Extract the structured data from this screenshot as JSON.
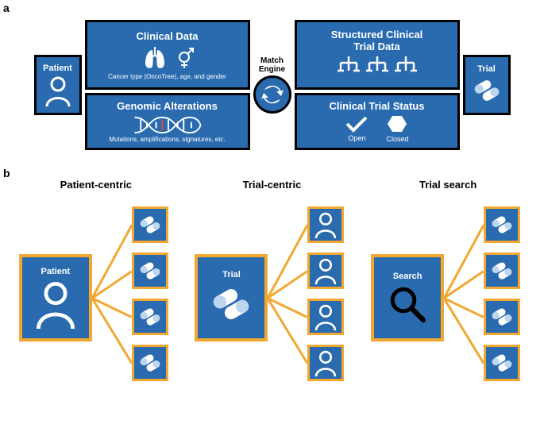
{
  "colors": {
    "box_bg": "#2a6bb0",
    "accent": "#f0a830",
    "light_pill": "#bcd6ef",
    "border": "#000000",
    "bg": "#ffffff"
  },
  "panel_labels": {
    "a": "a",
    "b": "b"
  },
  "a": {
    "patient_label": "Patient",
    "trial_label": "Trial",
    "match_label_l1": "Match",
    "match_label_l2": "Engine",
    "clinical_data": {
      "title": "Clinical Data",
      "subtitle": "Cancer type (OncoTree), age, and gender"
    },
    "genomic": {
      "title": "Genomic Alterations",
      "subtitle": "Mutations, amplifications, signatures, etc."
    },
    "structured": {
      "title_l1": "Structured Clinical",
      "title_l2": "Trial Data"
    },
    "status": {
      "title": "Clinical Trial Status",
      "open": "Open",
      "closed": "Closed"
    }
  },
  "b": {
    "cols": [
      {
        "title": "Patient-centric",
        "big_label": "Patient",
        "big_icon": "person",
        "small_icon": "pills",
        "count": 4
      },
      {
        "title": "Trial-centric",
        "big_label": "Trial",
        "big_icon": "pills",
        "small_icon": "person",
        "count": 4
      },
      {
        "title": "Trial search",
        "big_label": "Search",
        "big_icon": "search",
        "small_icon": "pills",
        "count": 4
      }
    ]
  }
}
